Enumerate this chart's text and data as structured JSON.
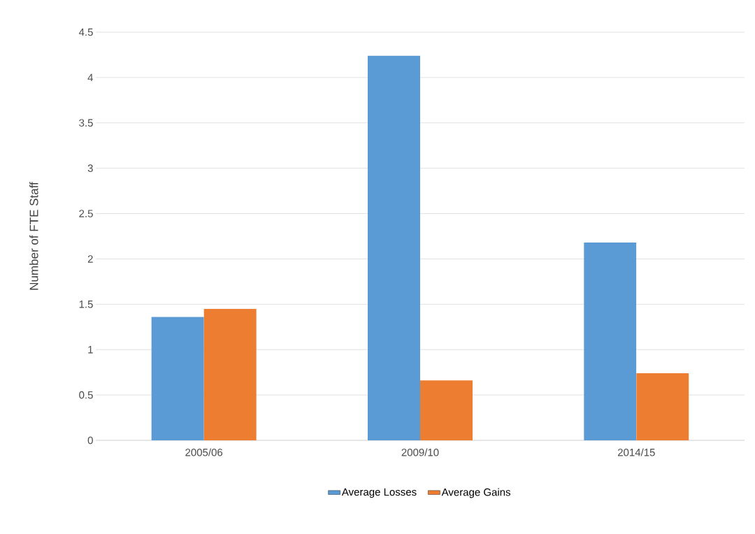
{
  "chart_data": {
    "type": "bar",
    "ylabel": "Number of  FTE Staff",
    "categories": [
      "2005/06",
      "2009/10",
      "2014/15"
    ],
    "series": [
      {
        "name": "Average Losses",
        "color": "#5b9bd5",
        "values": [
          1.36,
          4.24,
          2.18
        ]
      },
      {
        "name": "Average Gains",
        "color": "#ed7d31",
        "values": [
          1.45,
          0.66,
          0.74
        ]
      }
    ],
    "ylim": [
      0,
      4.5
    ],
    "yticks": [
      0,
      0.5,
      1,
      1.5,
      2,
      2.5,
      3,
      3.5,
      4,
      4.5
    ],
    "grid": "y",
    "legend": "bottom"
  }
}
